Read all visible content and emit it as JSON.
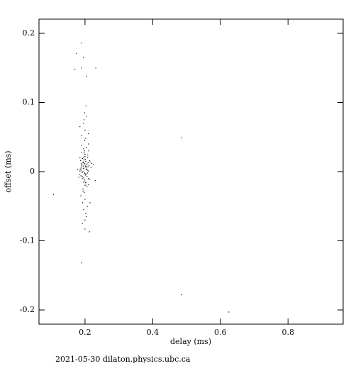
{
  "chart_data": {
    "type": "scatter",
    "x_label": "delay (ms)",
    "y_label": "offset (ms)",
    "footer": "2021-05-30  dilaton.physics.ubc.ca",
    "xlim": [
      0.064,
      0.963
    ],
    "ylim": [
      -0.2205,
      0.2205
    ],
    "xticks": [
      0.2,
      0.4,
      0.6,
      0.8
    ],
    "yticks": [
      -0.2,
      -0.1,
      0,
      0.1,
      0.2
    ],
    "grid": false,
    "color": "#000000",
    "x": [
      0.19,
      0.195,
      0.2,
      0.205,
      0.21,
      0.188,
      0.198,
      0.202,
      0.207,
      0.193,
      0.2,
      0.196,
      0.204,
      0.191,
      0.209,
      0.199,
      0.203,
      0.194,
      0.186,
      0.212,
      0.197,
      0.201,
      0.206,
      0.189,
      0.215,
      0.192,
      0.2,
      0.208,
      0.195,
      0.183,
      0.218,
      0.22,
      0.225,
      0.178,
      0.182,
      0.213,
      0.198,
      0.205,
      0.19,
      0.2,
      0.194,
      0.21,
      0.187,
      0.203,
      0.199,
      0.196,
      0.192,
      0.207,
      0.201,
      0.185,
      0.2,
      0.195,
      0.205,
      0.19,
      0.21,
      0.198,
      0.2,
      0.193,
      0.207,
      0.188,
      0.202,
      0.196,
      0.2,
      0.204,
      0.192,
      0.185,
      0.215,
      0.199,
      0.203,
      0.197,
      0.211,
      0.194,
      0.206,
      0.19,
      0.2,
      0.21,
      0.185,
      0.202,
      0.196,
      0.23,
      0.197,
      0.203,
      0.191,
      0.209,
      0.2,
      0.194,
      0.206,
      0.188,
      0.214,
      0.199,
      0.201,
      0.195,
      0.205,
      0.192,
      0.208,
      0.198,
      0.202,
      0.19,
      0.21,
      0.196,
      0.175,
      0.19,
      0.195,
      0.205,
      0.17,
      0.19,
      0.232,
      0.485,
      0.485,
      0.625,
      0.107,
      0.19,
      0.213,
      0.2
    ],
    "values": [
      0.002,
      0.005,
      -0.003,
      0.008,
      0.001,
      -0.006,
      0.012,
      0.015,
      -0.002,
      0.019,
      0.022,
      -0.009,
      0.004,
      0.01,
      0.013,
      -0.012,
      0.006,
      0.0,
      0.003,
      0.009,
      0.017,
      -0.005,
      0.011,
      0.007,
      0.014,
      -0.001,
      0.025,
      0.02,
      -0.015,
      -0.004,
      0.006,
      0.012,
      0.01,
      0.003,
      -0.008,
      -0.011,
      0.03,
      0.035,
      0.028,
      -0.02,
      -0.025,
      0.04,
      0.016,
      -0.018,
      0.045,
      0.008,
      -0.007,
      0.002,
      0.018,
      0.001,
      0.06,
      0.07,
      0.08,
      0.052,
      0.055,
      -0.03,
      -0.04,
      -0.045,
      -0.05,
      -0.035,
      -0.06,
      -0.055,
      -0.07,
      -0.065,
      -0.075,
      0.065,
      -0.045,
      0.085,
      0.095,
      0.075,
      0.03,
      -0.028,
      -0.022,
      0.038,
      -0.015,
      -0.01,
      0.02,
      0.048,
      0.033,
      -0.013,
      0.004,
      -0.004,
      0.009,
      0.007,
      0.011,
      0.013,
      -0.007,
      0.005,
      0.016,
      -0.002,
      0.008,
      0.014,
      0.003,
      -0.01,
      0.024,
      0.027,
      -0.016,
      0.012,
      -0.019,
      0.021,
      0.171,
      0.186,
      0.165,
      0.138,
      0.148,
      0.15,
      0.15,
      0.049,
      -0.178,
      -0.203,
      -0.033,
      -0.132,
      -0.087,
      -0.083
    ]
  }
}
